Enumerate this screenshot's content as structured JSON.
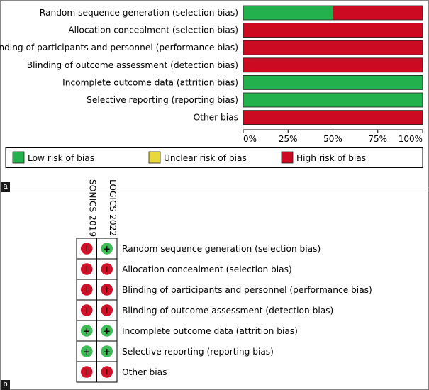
{
  "panel_labels": {
    "a": "a",
    "b": "b"
  },
  "colors": {
    "low": "#22b14c",
    "unclear": "#e8d83a",
    "high": "#cc0a21",
    "low_dot": "#3dbb54",
    "high_dot": "#d1102a"
  },
  "chart_data": [
    {
      "type": "bar",
      "orientation": "horizontal-stacked",
      "categories": [
        "Random sequence generation (selection bias)",
        "Allocation concealment (selection bias)",
        "Blinding of participants and personnel (performance bias)",
        "Blinding of outcome assessment (detection bias)",
        "Incomplete outcome data (attrition bias)",
        "Selective reporting (reporting bias)",
        "Other bias"
      ],
      "series": [
        {
          "name": "Low risk of bias",
          "key": "low",
          "values": [
            50,
            0,
            0,
            0,
            100,
            100,
            0
          ]
        },
        {
          "name": "Unclear risk of bias",
          "key": "unclear",
          "values": [
            0,
            0,
            0,
            0,
            0,
            0,
            0
          ]
        },
        {
          "name": "High risk of bias",
          "key": "high",
          "values": [
            50,
            100,
            100,
            100,
            0,
            0,
            100
          ]
        }
      ],
      "xlim": [
        0,
        100
      ],
      "xticks": [
        "0%",
        "25%",
        "50%",
        "75%",
        "100%"
      ],
      "legend": [
        "Low risk of bias",
        "Unclear risk of bias",
        "High risk of bias"
      ],
      "legend_position": "bottom"
    },
    {
      "type": "table",
      "studies": [
        "SONICS 2019",
        "LOGICS 2022"
      ],
      "domains": [
        "Random sequence generation (selection bias)",
        "Allocation concealment (selection bias)",
        "Blinding of participants and personnel (performance bias)",
        "Blinding of outcome assessment (detection bias)",
        "Incomplete outcome data (attrition bias)",
        "Selective reporting (reporting bias)",
        "Other bias"
      ],
      "judgements": [
        [
          "high",
          "low"
        ],
        [
          "high",
          "high"
        ],
        [
          "high",
          "high"
        ],
        [
          "high",
          "high"
        ],
        [
          "low",
          "low"
        ],
        [
          "low",
          "low"
        ],
        [
          "high",
          "high"
        ]
      ],
      "symbols": {
        "low": "+",
        "high": "-"
      }
    }
  ]
}
